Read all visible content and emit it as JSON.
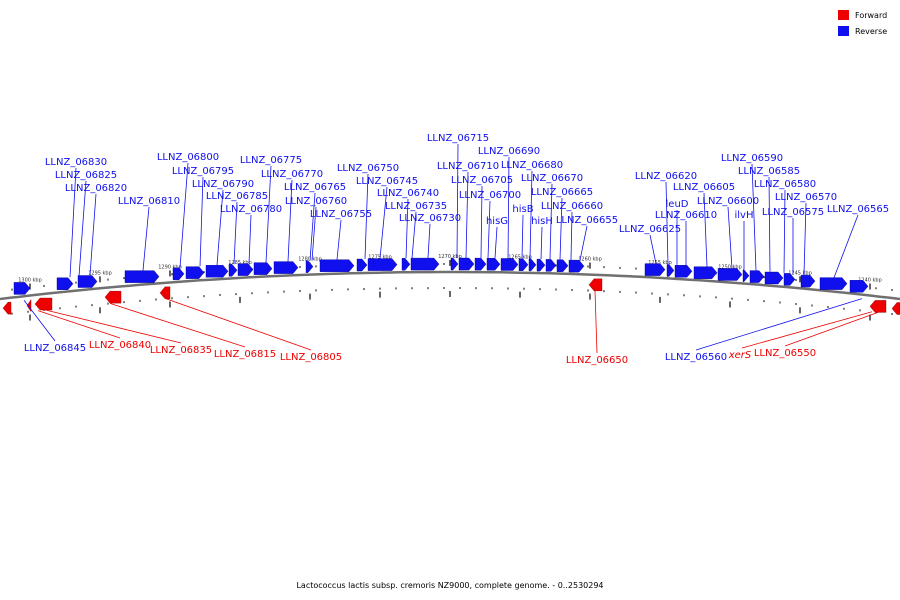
{
  "colors": {
    "forward": "#ee0000",
    "reverse": "#1010ee",
    "backbone": "#707070",
    "tick": "#000000",
    "background": "#ffffff"
  },
  "legend": {
    "forward_label": "Forward",
    "reverse_label": "Reverse"
  },
  "caption": "Lactococcus lactis subsp. cremoris NZ9000, complete genome. - 0..2530294",
  "scale_ticks": [
    "1300 kbp",
    "1295 kbp",
    "1290 kbp",
    "1285 kbp",
    "1280 kbp",
    "1275 kbp",
    "1270 kbp",
    "1265 kbp",
    "1260 kbp",
    "1255 kbp",
    "1250 kbp",
    "1245 kbp",
    "1240 kbp"
  ],
  "reverse_genes": [
    "LLNZ_06830",
    "LLNZ_06825",
    "LLNZ_06820",
    "LLNZ_06810",
    "LLNZ_06800",
    "LLNZ_06795",
    "LLNZ_06790",
    "LLNZ_06785",
    "LLNZ_06780",
    "LLNZ_06775",
    "LLNZ_06770",
    "LLNZ_06765",
    "LLNZ_06760",
    "LLNZ_06755",
    "LLNZ_06750",
    "LLNZ_06745",
    "LLNZ_06740",
    "LLNZ_06735",
    "LLNZ_06730",
    "LLNZ_06715",
    "LLNZ_06710",
    "LLNZ_06705",
    "LLNZ_06700",
    "hisG",
    "LLNZ_06690",
    "LLNZ_06680",
    "hisB",
    "LLNZ_06670",
    "hisH",
    "LLNZ_06665",
    "LLNZ_06660",
    "LLNZ_06655",
    "LLNZ_06625",
    "LLNZ_06620",
    "leuD",
    "LLNZ_06610",
    "LLNZ_06605",
    "LLNZ_06600",
    "ilvH",
    "LLNZ_06590",
    "LLNZ_06585",
    "LLNZ_06580",
    "LLNZ_06575",
    "LLNZ_06570",
    "LLNZ_06565",
    "LLNZ_06845",
    "LLNZ_06560"
  ],
  "forward_genes": [
    "LLNZ_06840",
    "LLNZ_06835",
    "LLNZ_06815",
    "LLNZ_06805",
    "LLNZ_06650",
    "LLNZ_06550"
  ],
  "forward_genes_reverse_colored_label": [
    "xerS"
  ]
}
